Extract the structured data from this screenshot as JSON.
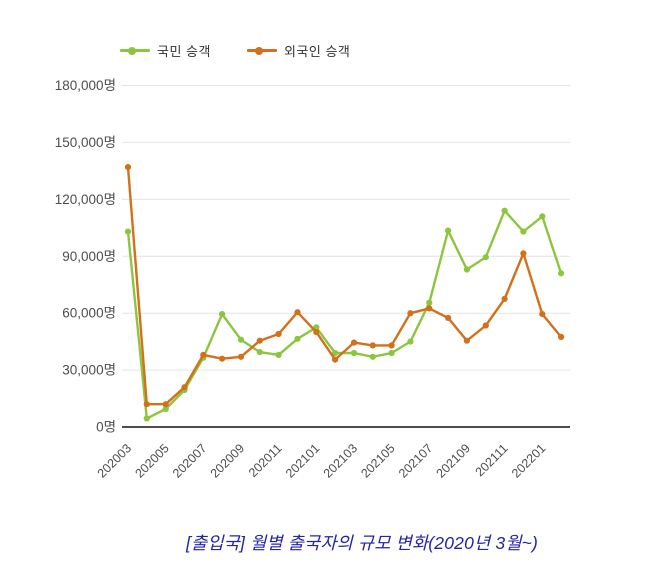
{
  "legend": {
    "items": [
      {
        "label": "국민 승객",
        "color": "#8CC63F"
      },
      {
        "label": "외국인 승객",
        "color": "#D2701C"
      }
    ]
  },
  "caption": {
    "text": "[출입국] 월별 출국자의 규모 변화(2020년 3월~)",
    "color": "#2323AB"
  },
  "colors": {
    "grid": "#E4E4E4",
    "axis": "#4D4D4D",
    "tick_text": "#4D4D4D",
    "national_series": "#8CC63F",
    "foreign_series": "#D2701C"
  },
  "chart_data": {
    "type": "line",
    "title": "",
    "xlabel": "",
    "ylabel": "",
    "unit": "명",
    "grid": "horizontal",
    "legend_position": "top",
    "ylim": [
      0,
      180000
    ],
    "x": [
      "202003",
      "202004",
      "202005",
      "202006",
      "202007",
      "202008",
      "202009",
      "202010",
      "202011",
      "202012",
      "202101",
      "202102",
      "202103",
      "202104",
      "202105",
      "202106",
      "202107",
      "202108",
      "202109",
      "202110",
      "202111",
      "202112",
      "202201",
      "202202"
    ],
    "x_tick_labels": [
      "202003",
      "202005",
      "202007",
      "202009",
      "202011",
      "202101",
      "202103",
      "202105",
      "202107",
      "202109",
      "202111",
      "202201"
    ],
    "y_ticks": [
      0,
      30000,
      60000,
      90000,
      120000,
      150000,
      180000
    ],
    "y_tick_labels": [
      "0명",
      "30,000명",
      "60,000명",
      "90,000명",
      "120,000명",
      "150,000명",
      "180,000명"
    ],
    "series": [
      {
        "name": "국민 승객",
        "color": "#8CC63F",
        "values": [
          103000,
          4500,
          9500,
          19500,
          36500,
          59500,
          46000,
          39500,
          38000,
          46500,
          52500,
          39000,
          39000,
          37000,
          39000,
          45000,
          65500,
          103500,
          83000,
          89500,
          114000,
          103000,
          111000,
          81000
        ]
      },
      {
        "name": "외국인 승객",
        "color": "#D2701C",
        "values": [
          137000,
          12000,
          12000,
          21000,
          38000,
          36000,
          37000,
          45500,
          49000,
          60500,
          50000,
          35500,
          44500,
          43000,
          43000,
          60000,
          62500,
          57500,
          45500,
          53500,
          67500,
          91500,
          59500,
          47500
        ]
      }
    ]
  }
}
